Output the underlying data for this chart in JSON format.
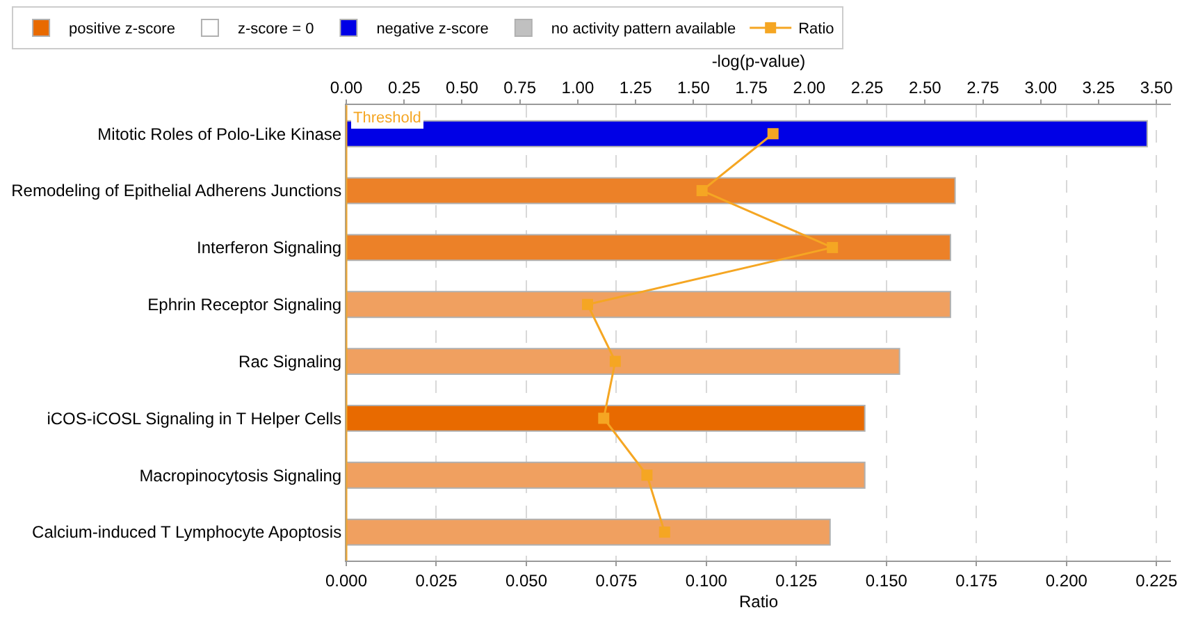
{
  "chart_data": {
    "type": "bar",
    "orientation": "horizontal",
    "categories": [
      "Mitotic Roles of Polo-Like Kinase",
      "Remodeling of Epithelial Adherens Junctions",
      "Interferon Signaling",
      "Ephrin Receptor Signaling",
      "Rac Signaling",
      "iCOS-iCOSL Signaling in T Helper Cells",
      "Macropinocytosis Signaling",
      "Calcium-induced T Lymphocyte Apoptosis"
    ],
    "series": [
      {
        "name": "positive z-score",
        "color": "#e86a00",
        "axis": "x2",
        "values": [
          null,
          2.63,
          2.61,
          2.61,
          2.39,
          2.24,
          2.24,
          2.09
        ],
        "colors": [
          "#e86a00",
          "#ec8128",
          "#ec8128",
          "#f0a060",
          "#f0a060",
          "#e86a00",
          "#f0a060",
          "#f0a060"
        ]
      },
      {
        "name": "z-score = 0",
        "color": "#ffffff",
        "axis": "x2",
        "values": [
          null,
          null,
          null,
          null,
          null,
          null,
          null,
          null
        ]
      },
      {
        "name": "negative z-score",
        "color": "#0000e6",
        "axis": "x2",
        "values": [
          3.46,
          null,
          null,
          null,
          null,
          null,
          null,
          null
        ]
      },
      {
        "name": "no activity pattern available",
        "color": "#c0c0c0",
        "axis": "x2",
        "values": [
          null,
          null,
          null,
          null,
          null,
          null,
          null,
          null
        ]
      },
      {
        "name": "Ratio",
        "type": "line",
        "color": "#f5a623",
        "marker": "square",
        "values": [
          0.1185,
          0.0988,
          0.135,
          0.067,
          0.0747,
          0.0715,
          0.0835,
          0.0884
        ]
      }
    ],
    "xlabel": "Ratio",
    "xlim": [
      0,
      0.229
    ],
    "xticks": [
      {
        "value": 0,
        "label": "0.000"
      },
      {
        "value": 0.025,
        "label": "0.025"
      },
      {
        "value": 0.05,
        "label": "0.050"
      },
      {
        "value": 0.075,
        "label": "0.075"
      },
      {
        "value": 0.1,
        "label": "0.100"
      },
      {
        "value": 0.125,
        "label": "0.125"
      },
      {
        "value": 0.15,
        "label": "0.150"
      },
      {
        "value": 0.175,
        "label": "0.175"
      },
      {
        "value": 0.2,
        "label": "0.200"
      },
      {
        "value": 0.225,
        "label": "0.225"
      }
    ],
    "x2label": "-log(p-value)",
    "x2lim": [
      0,
      3.5625
    ],
    "x2ticks": [
      {
        "value": 0,
        "label": "0.00"
      },
      {
        "value": 0.25,
        "label": "0.25"
      },
      {
        "value": 0.5,
        "label": "0.50"
      },
      {
        "value": 0.75,
        "label": "0.75"
      },
      {
        "value": 1,
        "label": "1.00"
      },
      {
        "value": 1.25,
        "label": "1.25"
      },
      {
        "value": 1.5,
        "label": "1.50"
      },
      {
        "value": 1.75,
        "label": "1.75"
      },
      {
        "value": 2,
        "label": "2.00"
      },
      {
        "value": 2.25,
        "label": "2.25"
      },
      {
        "value": 2.5,
        "label": "2.50"
      },
      {
        "value": 2.75,
        "label": "2.75"
      },
      {
        "value": 3,
        "label": "3.00"
      },
      {
        "value": 3.25,
        "label": "3.25"
      },
      {
        "value": 3.5,
        "label": "3.50"
      }
    ],
    "ref_lines": [
      {
        "axis": "x2",
        "value": 0,
        "label": "Threshold",
        "color": "#f5a623"
      }
    ],
    "grid": "x",
    "legend": "top"
  }
}
